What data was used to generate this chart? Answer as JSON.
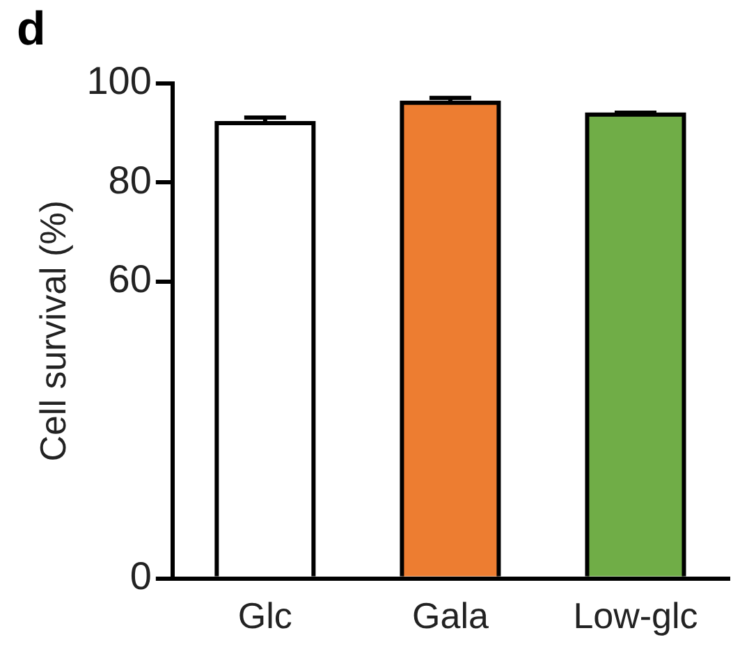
{
  "chart_data": {
    "type": "bar",
    "title": "d",
    "ylabel": "Cell survival (%)",
    "categories": [
      "Glc",
      "Gala",
      "Low-glc"
    ],
    "values": [
      92.0,
      96.1,
      93.7
    ],
    "errors": [
      1.1,
      1.0,
      0.4
    ],
    "colors": [
      "#ffffff",
      "#ed7d31",
      "#70ad47"
    ],
    "ylim": [
      0,
      100
    ],
    "yticks": [
      0,
      60,
      80,
      100
    ],
    "grid": false,
    "legend": false
  }
}
